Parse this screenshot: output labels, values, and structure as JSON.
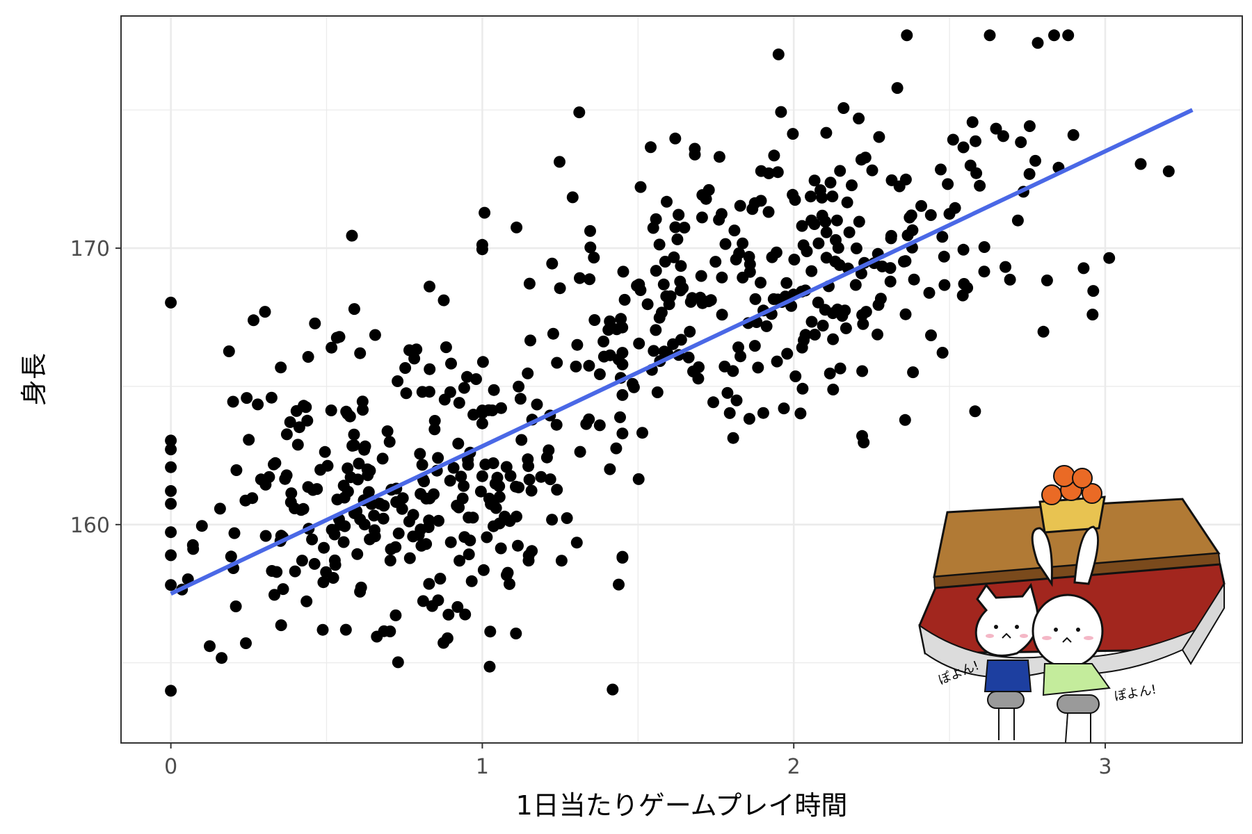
{
  "chart_data": {
    "type": "scatter",
    "title": "",
    "xlabel": "1日当たりゲームプレイ時間",
    "ylabel": "身長",
    "xlim": [
      -0.16,
      3.44
    ],
    "ylim": [
      152.1,
      178.4
    ],
    "x_ticks": [
      0,
      1,
      2,
      3
    ],
    "x_tick_labels": [
      "0",
      "1",
      "2",
      "3"
    ],
    "y_ticks": [
      160,
      170
    ],
    "y_tick_labels": [
      "160",
      "170"
    ],
    "grid": true,
    "theme": "white background with light grey grid and dark panel border",
    "point_color": "#000000",
    "trend_line": {
      "color": "#4a68e6",
      "x": [
        0,
        3.28
      ],
      "y": [
        157.5,
        175.0
      ]
    },
    "illustration": "cartoon of a cat and a rabbit holding game controllers under a kotatsu topped with a basket of mandarins (bottom-right of panel)",
    "illustration_text": [
      "ぽよん!",
      "ぽよん!"
    ],
    "n_points": 610
  },
  "colors": {
    "background": "#ffffff",
    "grid": "#ebebeb",
    "panel_border": "#333333",
    "points": "#000000",
    "trend_line": "#4a68e6"
  }
}
